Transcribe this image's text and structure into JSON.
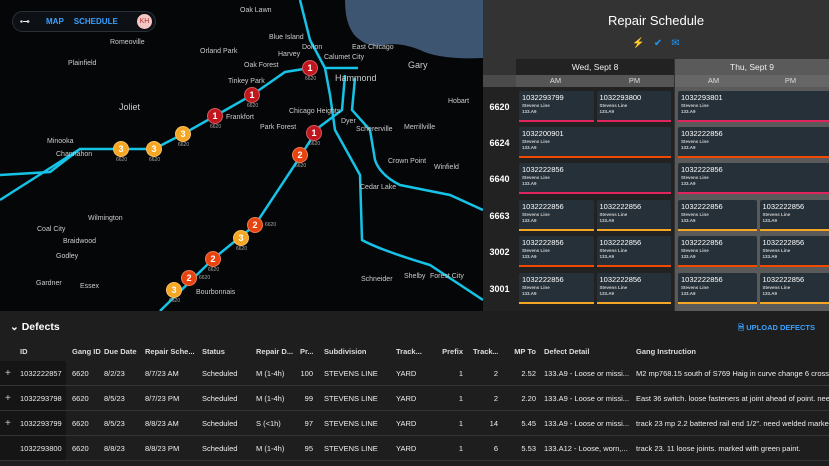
{
  "nav": {
    "logo": "▪⊸",
    "map": "MAP",
    "schedule": "SCHEDULE",
    "avatar": "KH"
  },
  "map": {
    "cities": [
      [
        "Oak Lawn",
        240,
        7,
        0
      ],
      [
        "Romeoville",
        110,
        39,
        0
      ],
      [
        "Blue Island",
        269,
        34,
        0
      ],
      [
        "Orland Park",
        200,
        48,
        0
      ],
      [
        "Dolton",
        302,
        44,
        0
      ],
      [
        "East Chicago",
        352,
        44,
        0
      ],
      [
        "Plainfield",
        68,
        60,
        0
      ],
      [
        "Calumet City",
        324,
        54,
        0
      ],
      [
        "Oak Forest",
        244,
        62,
        0
      ],
      [
        "Harvey",
        286,
        58,
        0
      ],
      [
        "Gary",
        408,
        60,
        1
      ],
      [
        "Hammond",
        335,
        73,
        1
      ],
      [
        "Tinkey Park",
        228,
        78,
        0
      ],
      [
        "Joliet",
        119,
        102,
        1
      ],
      [
        "Hobart",
        448,
        98,
        0
      ],
      [
        "Chicago Heights",
        289,
        108,
        0
      ],
      [
        "Frankfort",
        205,
        118,
        0
      ],
      [
        "Dyer",
        341,
        118,
        0
      ],
      [
        "Park Forest",
        268,
        124,
        0
      ],
      [
        "Schererville",
        356,
        126,
        0
      ],
      [
        "Merrillville",
        404,
        124,
        0
      ],
      [
        "Minooka",
        47,
        138,
        0
      ],
      [
        "Channahon",
        56,
        151,
        0
      ],
      [
        "Crown Point",
        388,
        158,
        0
      ],
      [
        "Winfield",
        428,
        164,
        0
      ],
      [
        "Cedar Lake",
        360,
        184,
        0
      ],
      [
        "Wilmington",
        88,
        215,
        0
      ],
      [
        "Coal City",
        37,
        226,
        0
      ],
      [
        "Braidwood",
        63,
        238,
        0
      ],
      [
        "Godley",
        56,
        253,
        0
      ],
      [
        "Gardner",
        36,
        280,
        0
      ],
      [
        "Essex",
        80,
        283,
        0
      ],
      [
        "Schneider",
        361,
        276,
        0
      ],
      [
        "Shelby",
        404,
        273,
        0
      ],
      [
        "Forest City",
        430,
        273,
        0
      ],
      [
        "Bourbonnais",
        188,
        288,
        0
      ]
    ],
    "markers": [
      [
        "1",
        310,
        68
      ],
      [
        "1",
        252,
        95
      ],
      [
        "1",
        215,
        116
      ],
      [
        "1",
        314,
        133
      ],
      [
        "3",
        183,
        134
      ],
      [
        "2",
        300,
        155
      ],
      [
        "3",
        154,
        149
      ],
      [
        "3",
        121,
        149
      ],
      [
        "2",
        255,
        225
      ],
      [
        "3",
        241,
        238
      ],
      [
        "2",
        213,
        259
      ],
      [
        "2",
        189,
        278
      ],
      [
        "3",
        180,
        285
      ]
    ],
    "marker_label": "6620",
    "colors": {
      "1": "#c0171e",
      "2": "#e8430f",
      "3": "#f5a623",
      "rail": "#16c3e6",
      "water": "#3d5570"
    }
  },
  "schedule": {
    "title": "Repair Schedule",
    "icons": [
      "lightning-icon",
      "check-circle-icon",
      "mail-icon"
    ],
    "days": [
      {
        "label": "Wed, Sept 8"
      },
      {
        "label": "Thu, Sept 9"
      }
    ],
    "slots": [
      "AM",
      "PM",
      "AM",
      "PM"
    ],
    "line": "Stevens Line",
    "code": "133.A9",
    "rows": [
      {
        "gang": "6620",
        "color": "#e0245e",
        "wed": [
          "1032293799",
          "1032293800"
        ],
        "thu": [
          "1032293801"
        ]
      },
      {
        "gang": "6624",
        "color": "#f04a00",
        "wed": [
          "1032200901"
        ],
        "thu": [
          "1032222856"
        ]
      },
      {
        "gang": "6640",
        "color": "#e0245e",
        "wed": [
          "1032222856"
        ],
        "thu": [
          "1032222856"
        ]
      },
      {
        "gang": "6663",
        "color": "#f5a623",
        "wed": [
          "1032222856",
          "1032222856"
        ],
        "thu": [
          "1032222856",
          "1032222856"
        ]
      },
      {
        "gang": "3002",
        "color": "#f04a00",
        "wed": [
          "1032222856",
          "1032222856"
        ],
        "thu": [
          "1032222856",
          "1032222856"
        ]
      },
      {
        "gang": "3001",
        "color": "#f5a623",
        "wed": [
          "1032222856",
          "1032222856"
        ],
        "thu": [
          "1032222856",
          "1032222856"
        ]
      }
    ]
  },
  "defects": {
    "title": "Defects",
    "upload": "UPLOAD DEFECTS",
    "columns": [
      "ID",
      "Gang ID",
      "Due Date",
      "Repair Sche...",
      "Status",
      "Repair D...",
      "Pr...",
      "Subdivision",
      "Track...",
      "Prefix",
      "Track...",
      "MP To",
      "Defect Detail",
      "Gang Instruction"
    ],
    "rows": [
      {
        "expand": true,
        "cells": [
          "1032222857",
          "6620",
          "8/2/23",
          "8/7/23 AM",
          "Scheduled",
          "M (1-4h)",
          "100",
          "STEVENS LINE",
          "YARD",
          "1",
          "2",
          "2.52",
          "133.A9 - Loose or missi...",
          "M2 mp768.15 south of S769 Haig in curve change 6 crossties"
        ]
      },
      {
        "expand": true,
        "cells": [
          "1032293798",
          "6620",
          "8/5/23",
          "8/7/23 PM",
          "Scheduled",
          "M (1-4h)",
          "99",
          "STEVENS LINE",
          "YARD",
          "1",
          "2",
          "2.20",
          "133.A9 - Loose or missi...",
          "East 36 switch. loose fasteners at joint ahead of point. need"
        ]
      },
      {
        "expand": true,
        "cells": [
          "1032293799",
          "6620",
          "8/5/23",
          "8/8/23 AM",
          "Scheduled",
          "S (<1h)",
          "97",
          "STEVENS LINE",
          "YARD",
          "1",
          "14",
          "5.45",
          "133.A9 - Loose or missi...",
          "track 23 mp 2.2 battered rail end 1/2\". need welded marked"
        ]
      },
      {
        "expand": false,
        "cells": [
          "1032293800",
          "6620",
          "8/8/23",
          "8/8/23 PM",
          "Scheduled",
          "M (1-4h)",
          "95",
          "STEVENS LINE",
          "YARD",
          "1",
          "6",
          "5.53",
          "133.A12 - Loose, worn,...",
          "track 23. 11 loose joints. marked with green paint."
        ]
      }
    ]
  }
}
